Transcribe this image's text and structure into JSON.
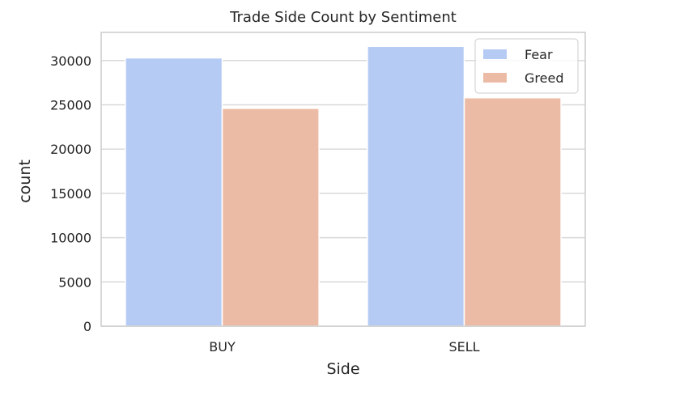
{
  "chart_data": {
    "type": "bar",
    "title": "Trade Side Count by Sentiment",
    "xlabel": "Side",
    "ylabel": "count",
    "categories": [
      "BUY",
      "SELL"
    ],
    "series": [
      {
        "name": "Fear",
        "values": [
          30300,
          31600
        ],
        "color": "#b5cbf4"
      },
      {
        "name": "Greed",
        "values": [
          24600,
          25800
        ],
        "color": "#ecbba5"
      }
    ],
    "yticks": [
      0,
      5000,
      10000,
      15000,
      20000,
      25000,
      30000
    ],
    "ylim": [
      0,
      33180
    ],
    "grid": true,
    "legend_position": "top-right"
  }
}
